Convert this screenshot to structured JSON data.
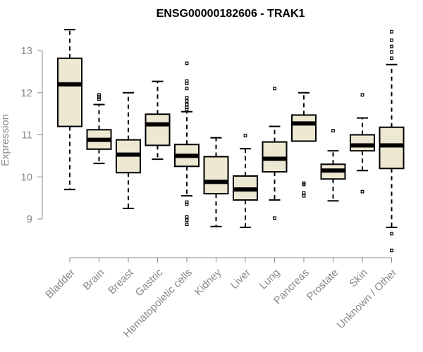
{
  "chart_data": {
    "type": "boxplot",
    "title": "ENSG00000182606 - TRAK1",
    "xlabel": "",
    "ylabel": "Expression",
    "ylim": [
      8.1,
      13.6
    ],
    "yticks": [
      9,
      10,
      11,
      12,
      13
    ],
    "box_fill": "#ede8d2",
    "categories": [
      "Bladder",
      "Brain",
      "Breast",
      "Gastric",
      "Hematopoietic cells",
      "Kidney",
      "Liver",
      "Lung",
      "Pancreas",
      "Prostate",
      "Skin",
      "Unknown / Other"
    ],
    "boxes": [
      {
        "min": 9.7,
        "q1": 11.2,
        "median": 12.2,
        "q3": 12.82,
        "max": 13.5,
        "outliers": []
      },
      {
        "min": 10.32,
        "q1": 10.66,
        "median": 10.88,
        "q3": 11.12,
        "max": 11.72,
        "outliers": [
          11.85,
          11.9,
          11.95
        ]
      },
      {
        "min": 9.25,
        "q1": 10.1,
        "median": 10.53,
        "q3": 10.88,
        "max": 12.0,
        "outliers": []
      },
      {
        "min": 10.42,
        "q1": 10.75,
        "median": 11.25,
        "q3": 11.49,
        "max": 12.27,
        "outliers": []
      },
      {
        "min": 9.55,
        "q1": 10.25,
        "median": 10.5,
        "q3": 10.77,
        "max": 11.55,
        "outliers": [
          12.7,
          12.28,
          12.22,
          12.1,
          11.88,
          11.8,
          11.72,
          11.65,
          11.6,
          9.4,
          9.35,
          9.05,
          8.97,
          8.87
        ]
      },
      {
        "min": 8.82,
        "q1": 9.6,
        "median": 9.88,
        "q3": 10.48,
        "max": 10.93,
        "outliers": []
      },
      {
        "min": 8.8,
        "q1": 9.45,
        "median": 9.7,
        "q3": 10.02,
        "max": 10.67,
        "outliers": [
          10.98
        ]
      },
      {
        "min": 9.45,
        "q1": 10.12,
        "median": 10.43,
        "q3": 10.83,
        "max": 11.2,
        "outliers": [
          12.1,
          9.02
        ]
      },
      {
        "min": 10.85,
        "q1": 10.85,
        "median": 11.27,
        "q3": 11.47,
        "max": 12.0,
        "outliers": [
          9.85,
          9.82,
          9.62,
          9.55
        ]
      },
      {
        "min": 9.43,
        "q1": 9.95,
        "median": 10.15,
        "q3": 10.3,
        "max": 10.62,
        "outliers": [
          11.1
        ]
      },
      {
        "min": 10.15,
        "q1": 10.62,
        "median": 10.75,
        "q3": 11.0,
        "max": 11.4,
        "outliers": [
          11.95,
          9.65
        ]
      },
      {
        "min": 8.8,
        "q1": 10.2,
        "median": 10.75,
        "q3": 11.18,
        "max": 12.67,
        "outliers": [
          13.45,
          13.25,
          13.1,
          12.97,
          12.82,
          8.65,
          8.25
        ]
      }
    ]
  }
}
